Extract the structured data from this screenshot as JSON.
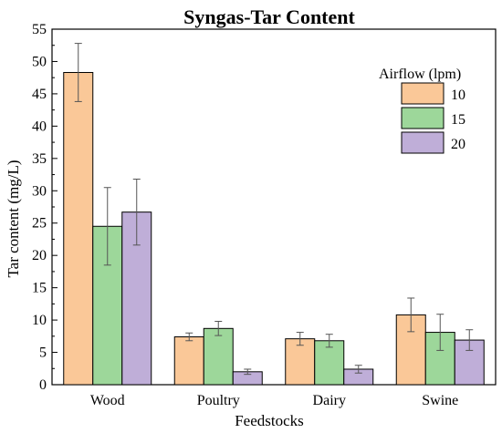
{
  "chart_data": {
    "type": "bar",
    "title": "Syngas-Tar Content",
    "xlabel": "Feedstocks",
    "ylabel": "Tar content (mg/L)",
    "ylim": [
      0,
      55
    ],
    "yticks": [
      0,
      5,
      10,
      15,
      20,
      25,
      30,
      35,
      40,
      45,
      50,
      55
    ],
    "categories": [
      "Wood",
      "Poultry",
      "Dairy",
      "Swine"
    ],
    "legend": {
      "title": "Airflow (lpm)",
      "placement": "top-right"
    },
    "series": [
      {
        "name": "10",
        "color": "#FAC898",
        "values": [
          48.3,
          7.4,
          7.1,
          10.8
        ],
        "errors": [
          4.5,
          0.6,
          1.0,
          2.6
        ]
      },
      {
        "name": "15",
        "color": "#9DD79A",
        "values": [
          24.5,
          8.7,
          6.8,
          8.1
        ],
        "errors": [
          6.0,
          1.1,
          1.0,
          2.8
        ]
      },
      {
        "name": "20",
        "color": "#BFAED8",
        "values": [
          26.7,
          2.0,
          2.4,
          6.9
        ],
        "errors": [
          5.1,
          0.4,
          0.6,
          1.6
        ]
      }
    ],
    "grid": false
  }
}
